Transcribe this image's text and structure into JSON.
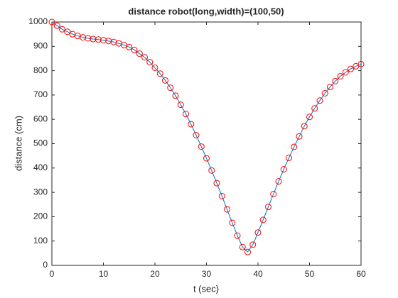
{
  "chart_data": {
    "type": "line",
    "title": "distance robot(long,width)=(100,50)",
    "x_label": "t (sec)",
    "y_label": "distance (cm)",
    "x": [
      0,
      1,
      2,
      3,
      4,
      5,
      6,
      7,
      8,
      9,
      10,
      11,
      12,
      13,
      14,
      15,
      16,
      17,
      18,
      19,
      20,
      21,
      22,
      23,
      24,
      25,
      26,
      27,
      28,
      29,
      30,
      31,
      32,
      33,
      34,
      35,
      36,
      37,
      38,
      39,
      40,
      41,
      42,
      43,
      44,
      45,
      46,
      47,
      48,
      49,
      50,
      51,
      52,
      53,
      54,
      55,
      56,
      57,
      58,
      59,
      60
    ],
    "values": [
      1000,
      985,
      970,
      960,
      950,
      943,
      937,
      933,
      930,
      928,
      925,
      922,
      918,
      912,
      905,
      897,
      885,
      870,
      855,
      835,
      812,
      788,
      760,
      730,
      697,
      660,
      622,
      580,
      535,
      488,
      440,
      390,
      338,
      285,
      230,
      175,
      122,
      75,
      55,
      85,
      135,
      187,
      240,
      293,
      345,
      395,
      442,
      487,
      530,
      572,
      610,
      645,
      677,
      707,
      733,
      757,
      777,
      793,
      807,
      818,
      827
    ],
    "color": "#0072bd",
    "marker_color": "#ff0000",
    "xlim": [
      0,
      60
    ],
    "xticks": [
      0,
      10,
      20,
      30,
      40,
      50,
      60
    ],
    "ylim": [
      0,
      1000
    ],
    "yticks": [
      0,
      100,
      200,
      300,
      400,
      500,
      600,
      700,
      800,
      900,
      1000
    ]
  }
}
